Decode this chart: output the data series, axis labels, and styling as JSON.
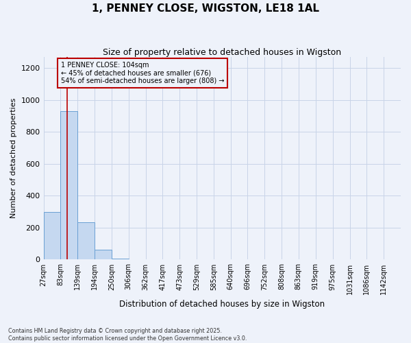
{
  "title": "1, PENNEY CLOSE, WIGSTON, LE18 1AL",
  "subtitle": "Size of property relative to detached houses in Wigston",
  "xlabel": "Distribution of detached houses by size in Wigston",
  "ylabel": "Number of detached properties",
  "bar_edges": [
    27,
    83,
    139,
    194,
    250,
    306,
    362,
    417,
    473,
    529,
    585,
    640,
    696,
    752,
    808,
    863,
    919,
    975,
    1031,
    1086,
    1142
  ],
  "bar_heights": [
    300,
    930,
    235,
    60,
    5,
    0,
    0,
    0,
    0,
    0,
    0,
    0,
    0,
    0,
    0,
    0,
    0,
    0,
    0,
    0
  ],
  "bar_color": "#c5d8f0",
  "bar_edge_color": "#6aa0d4",
  "grid_color": "#c8d4e8",
  "background_color": "#eef2fa",
  "red_line_x": 104,
  "annotation_text": "1 PENNEY CLOSE: 104sqm\n← 45% of detached houses are smaller (676)\n54% of semi-detached houses are larger (808) →",
  "annotation_box_color": "#bb0000",
  "ylim": [
    0,
    1270
  ],
  "yticks": [
    0,
    200,
    400,
    600,
    800,
    1000,
    1200
  ],
  "footnote": "Contains HM Land Registry data © Crown copyright and database right 2025.\nContains public sector information licensed under the Open Government Licence v3.0.",
  "title_fontsize": 11,
  "subtitle_fontsize": 9,
  "label_fontsize": 8,
  "tick_fontsize": 7,
  "ann_fontsize": 7
}
